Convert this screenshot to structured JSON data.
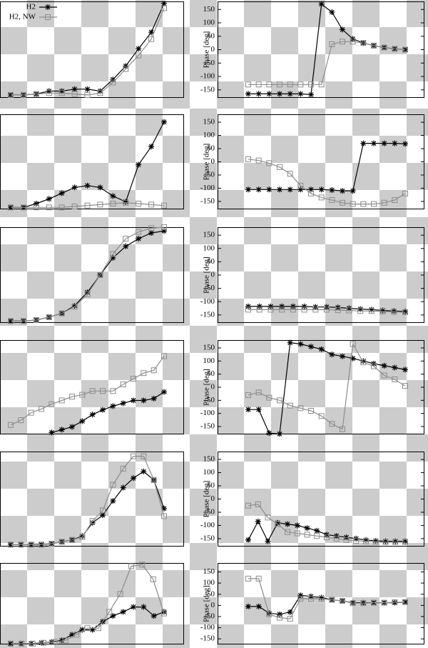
{
  "chart_data": [
    {
      "type": "line",
      "legend": true,
      "legend_position": "upper left",
      "ylim": [
        0,
        100
      ],
      "series": [
        {
          "name": "H2",
          "color": "#000000",
          "marker": "star",
          "values": [
            3,
            3,
            4,
            7,
            7,
            9,
            9,
            7,
            19,
            33,
            51,
            68,
            98
          ]
        },
        {
          "name": "H2, NW",
          "color": "#8c8c8c",
          "marker": "square",
          "values": [
            3,
            3,
            4,
            5,
            5,
            4,
            3,
            5,
            16,
            30,
            44,
            61,
            93
          ]
        }
      ]
    },
    {
      "type": "line",
      "ylabel": "Phase [deg]",
      "ylim": [
        -180,
        180
      ],
      "yticks": [
        -150,
        -100,
        -50,
        0,
        50,
        100,
        150
      ],
      "series": [
        {
          "color": "#000000",
          "marker": "star",
          "values": [
            -165,
            -165,
            -165,
            -165,
            -165,
            -165,
            -168,
            170,
            140,
            75,
            40,
            25,
            15,
            8,
            3,
            0
          ]
        },
        {
          "color": "#8c8c8c",
          "marker": "square",
          "values": [
            -130,
            -130,
            -130,
            -130,
            -130,
            -130,
            -130,
            -130,
            20,
            30,
            30,
            25,
            15,
            8,
            3,
            0
          ]
        }
      ]
    },
    {
      "type": "line",
      "ylim": [
        0,
        100
      ],
      "series": [
        {
          "color": "#000000",
          "marker": "star",
          "values": [
            2,
            2,
            6,
            11,
            17,
            23,
            25,
            23,
            14,
            8,
            47,
            66,
            92
          ]
        },
        {
          "color": "#8c8c8c",
          "marker": "square",
          "values": [
            2,
            2,
            2,
            2,
            2,
            3,
            4,
            5,
            6,
            7,
            6,
            5,
            4
          ]
        }
      ]
    },
    {
      "type": "line",
      "ylabel": "Phase [deg]",
      "ylim": [
        -180,
        180
      ],
      "yticks": [
        -150,
        -100,
        -50,
        0,
        50,
        100,
        150
      ],
      "series": [
        {
          "color": "#000000",
          "marker": "star",
          "values": [
            -105,
            -105,
            -105,
            -105,
            -105,
            -105,
            -105,
            -105,
            -107,
            -110,
            -110,
            70,
            70,
            70,
            70,
            68
          ]
        },
        {
          "color": "#8c8c8c",
          "marker": "square",
          "values": [
            10,
            5,
            -5,
            -20,
            -45,
            -90,
            -120,
            -135,
            -145,
            -155,
            -160,
            -160,
            -160,
            -155,
            -145,
            -120
          ]
        }
      ]
    },
    {
      "type": "line",
      "ylim": [
        0,
        100
      ],
      "series": [
        {
          "color": "#000000",
          "marker": "star",
          "values": [
            2,
            2,
            3,
            6,
            10,
            18,
            32,
            50,
            68,
            80,
            88,
            94,
            96
          ]
        },
        {
          "color": "#8c8c8c",
          "marker": "square",
          "values": [
            2,
            2,
            3,
            6,
            10,
            17,
            30,
            50,
            72,
            88,
            95,
            99,
            100
          ]
        }
      ]
    },
    {
      "type": "line",
      "ylabel": "Phase [deg]",
      "ylim": [
        -180,
        180
      ],
      "yticks": [
        -150,
        -100,
        -50,
        0,
        50,
        100,
        150
      ],
      "series": [
        {
          "color": "#000000",
          "marker": "star",
          "values": [
            -118,
            -118,
            -118,
            -118,
            -118,
            -118,
            -120,
            -120,
            -122,
            -125,
            -128,
            -130,
            -133,
            -135,
            -137
          ]
        },
        {
          "color": "#8c8c8c",
          "marker": "square",
          "values": [
            -130,
            -130,
            -130,
            -130,
            -130,
            -130,
            -130,
            -130,
            -132,
            -133,
            -135,
            -135,
            -137,
            -138,
            -140
          ]
        }
      ]
    },
    {
      "type": "line",
      "ylim": [
        0,
        100
      ],
      "series": [
        {
          "color": "#000000",
          "marker": "star",
          "values": [
            null,
            null,
            null,
            null,
            2,
            5,
            8,
            14,
            21,
            26,
            30,
            33,
            36,
            36,
            38,
            45
          ]
        },
        {
          "color": "#8c8c8c",
          "marker": "square",
          "values": [
            10,
            15,
            23,
            27,
            32,
            36,
            40,
            42,
            46,
            46,
            46,
            53,
            59,
            65,
            68,
            83
          ]
        }
      ]
    },
    {
      "type": "line",
      "ylabel": "Phase [deg]",
      "ylim": [
        -180,
        180
      ],
      "yticks": [
        -150,
        -100,
        -50,
        0,
        50,
        100,
        150
      ],
      "series": [
        {
          "color": "#000000",
          "marker": "star",
          "values": [
            -85,
            -85,
            -175,
            -178,
            170,
            165,
            155,
            145,
            125,
            118,
            110,
            100,
            90,
            82,
            75,
            67
          ]
        },
        {
          "color": "#8c8c8c",
          "marker": "square",
          "values": [
            -30,
            -20,
            -40,
            -50,
            -70,
            -80,
            -90,
            -110,
            -140,
            -160,
            165,
            95,
            80,
            45,
            30,
            5
          ]
        }
      ]
    },
    {
      "type": "line",
      "ylim": [
        0,
        100
      ],
      "series": [
        {
          "color": "#000000",
          "marker": "star",
          "values": [
            2,
            2,
            2,
            2,
            3,
            5,
            7,
            11,
            25,
            33,
            48,
            62,
            72,
            79,
            70,
            40
          ]
        },
        {
          "color": "#8c8c8c",
          "marker": "square",
          "values": [
            2,
            2,
            2,
            2,
            3,
            5,
            7,
            10,
            27,
            38,
            65,
            82,
            95,
            95,
            70,
            32
          ]
        }
      ]
    },
    {
      "type": "line",
      "ylabel": "Phase [deg]",
      "ylim": [
        -180,
        180
      ],
      "yticks": [
        -150,
        -100,
        -50,
        0,
        50,
        100,
        150
      ],
      "series": [
        {
          "color": "#000000",
          "marker": "star",
          "values": [
            -155,
            -85,
            -160,
            -90,
            -95,
            -100,
            -110,
            -120,
            -135,
            -140,
            -145,
            -150,
            -155,
            -158,
            -160,
            -160,
            -160
          ]
        },
        {
          "color": "#8c8c8c",
          "marker": "square",
          "values": [
            -25,
            -20,
            -70,
            -95,
            -125,
            -130,
            -135,
            -140,
            -145,
            -150,
            -155,
            -158,
            -160,
            -162,
            -163,
            -163,
            -163
          ]
        }
      ]
    },
    {
      "type": "line",
      "ylim": [
        0,
        100
      ],
      "series": [
        {
          "color": "#000000",
          "marker": "star",
          "values": [
            1,
            1,
            1,
            2,
            3,
            5,
            12,
            18,
            18,
            28,
            35,
            40,
            46,
            46,
            35,
            40
          ]
        },
        {
          "color": "#8c8c8c",
          "marker": "square",
          "values": [
            1,
            1,
            1,
            2,
            3,
            5,
            12,
            20,
            20,
            40,
            62,
            96,
            98,
            80,
            38
          ]
        }
      ]
    },
    {
      "type": "line",
      "ylabel": "Phase [deg]",
      "ylim": [
        -175,
        190
      ],
      "yticks": [
        -150,
        -100,
        -50,
        0,
        50,
        100,
        150
      ],
      "series": [
        {
          "color": "#000000",
          "marker": "star",
          "values": [
            -5,
            -5,
            -35,
            -40,
            -30,
            45,
            40,
            35,
            25,
            20,
            12,
            12,
            12,
            12,
            12,
            15
          ]
        },
        {
          "color": "#8c8c8c",
          "marker": "square",
          "values": [
            120,
            120,
            -40,
            -55,
            -60,
            30,
            30,
            30,
            25,
            20,
            10,
            10,
            12,
            12,
            14,
            15
          ]
        }
      ]
    }
  ]
}
